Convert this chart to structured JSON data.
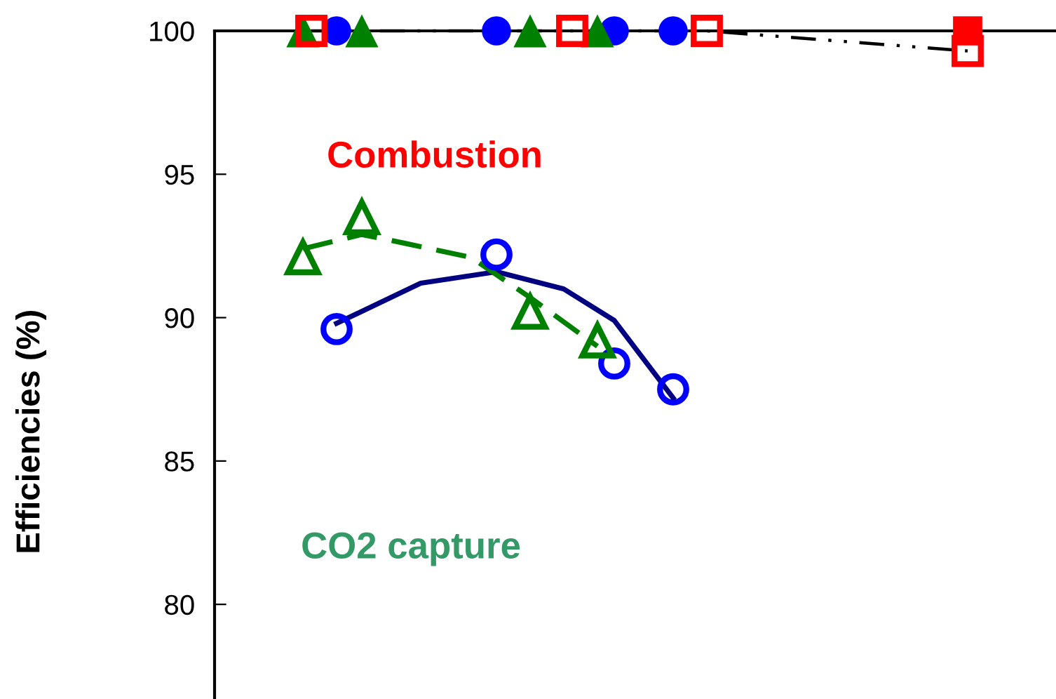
{
  "chart_data": {
    "type": "scatter",
    "ylabel": "Efficiencies (%)",
    "annotations": [
      "Combustion",
      "CO2 capture"
    ],
    "categories": [
      null,
      null,
      null,
      null,
      null,
      null,
      null,
      null,
      null,
      null,
      null,
      null,
      null,
      null,
      null,
      null,
      null,
      null,
      null,
      null,
      null,
      null,
      null,
      null,
      null,
      null,
      null,
      null,
      null,
      null,
      null,
      null,
      null,
      null,
      null,
      null,
      null,
      null,
      null,
      null,
      null,
      null,
      null,
      null,
      null,
      null,
      null,
      null,
      null,
      null,
      null,
      null,
      null,
      null,
      null,
      null,
      null,
      null,
      null,
      null,
      null,
      null,
      null,
      null,
      null,
      null,
      null,
      null,
      null,
      null,
      null,
      null,
      null,
      null,
      null,
      null,
      null,
      null,
      null,
      null,
      null,
      null,
      null,
      null,
      null,
      null,
      null,
      null,
      null,
      null,
      null,
      null,
      null,
      null,
      null,
      null,
      null,
      null,
      null,
      null
    ],
    "ylim": [
      76.7,
      100
    ],
    "yticks": [
      80,
      85,
      90,
      95,
      100
    ],
    "tick_labels": "y",
    "grid": false,
    "legend": false,
    "series": [
      {
        "marker": "circle",
        "color": "#0000ff",
        "values": [
          null,
          null,
          null,
          null,
          null,
          null,
          null,
          null,
          null,
          null,
          null,
          null,
          null,
          null,
          100,
          null,
          null,
          null,
          null,
          null,
          null,
          null,
          null,
          null,
          null,
          null,
          null,
          null,
          null,
          null,
          null,
          null,
          null,
          100,
          null,
          null,
          null,
          null,
          null,
          null,
          null,
          null,
          null,
          null,
          null,
          null,
          null,
          100,
          null,
          null,
          null,
          null,
          null,
          null,
          100,
          null,
          null,
          null,
          null,
          null,
          null,
          null,
          null,
          null,
          null,
          null,
          null,
          null,
          null,
          null,
          null,
          null,
          null,
          null,
          null,
          null,
          null,
          null,
          null,
          null,
          null,
          null,
          null,
          null,
          null,
          null,
          null,
          null,
          null,
          null,
          null,
          null,
          null,
          null,
          null,
          null,
          null,
          null,
          null,
          null
        ]
      },
      {
        "marker": "triangle",
        "color": "#008000",
        "values": [
          null,
          null,
          null,
          null,
          null,
          null,
          null,
          null,
          null,
          null,
          100,
          null,
          null,
          null,
          null,
          null,
          null,
          100,
          null,
          null,
          null,
          null,
          null,
          null,
          null,
          null,
          null,
          null,
          null,
          null,
          null,
          null,
          null,
          null,
          null,
          null,
          null,
          100,
          null,
          null,
          null,
          null,
          null,
          null,
          null,
          100,
          null,
          null,
          null,
          null,
          null,
          null,
          null,
          null,
          null,
          null,
          null,
          null,
          null,
          null,
          null,
          null,
          null,
          null,
          null,
          null,
          null,
          null,
          null,
          null,
          null,
          null,
          null,
          null,
          null,
          null,
          null,
          null,
          null,
          null,
          null,
          null,
          null,
          null,
          null,
          null,
          null,
          null,
          null,
          null,
          null,
          null,
          null,
          null,
          null,
          null,
          null,
          null,
          null,
          null
        ]
      },
      {
        "marker": "square",
        "color": "#ff0000",
        "values": [
          null,
          null,
          null,
          null,
          null,
          null,
          null,
          null,
          null,
          null,
          null,
          null,
          null,
          null,
          null,
          null,
          null,
          null,
          null,
          null,
          null,
          null,
          null,
          null,
          null,
          null,
          null,
          null,
          null,
          null,
          null,
          null,
          null,
          null,
          null,
          null,
          null,
          null,
          null,
          null,
          null,
          null,
          null,
          null,
          null,
          null,
          null,
          null,
          null,
          null,
          null,
          null,
          null,
          null,
          null,
          null,
          null,
          null,
          null,
          null,
          null,
          null,
          null,
          null,
          null,
          null,
          null,
          null,
          null,
          null,
          null,
          null,
          null,
          null,
          null,
          null,
          null,
          null,
          null,
          null,
          null,
          null,
          null,
          null,
          null,
          null,
          null,
          null,
          null,
          100,
          null,
          null,
          null,
          null,
          null,
          null,
          null,
          null,
          null,
          null
        ]
      },
      {
        "type": "line",
        "line_style": "dashed",
        "color": "#000000",
        "values": [
          null,
          null,
          null,
          null,
          null,
          null,
          null,
          null,
          null,
          null,
          null,
          100,
          null,
          null,
          null,
          null,
          null,
          null,
          null,
          null,
          null,
          null,
          null,
          null,
          null,
          null,
          null,
          null,
          null,
          null,
          null,
          null,
          null,
          null,
          null,
          null,
          null,
          null,
          null,
          null,
          null,
          null,
          null,
          null,
          null,
          null,
          null,
          null,
          null,
          null,
          null,
          null,
          null,
          null,
          null,
          null,
          null,
          null,
          100,
          null,
          null,
          null,
          null,
          null,
          null,
          null,
          null,
          null,
          null,
          null,
          null,
          null,
          null,
          null,
          null,
          null,
          null,
          null,
          null,
          null,
          null,
          null,
          null,
          null,
          null,
          null,
          null,
          null,
          null,
          99.3,
          null,
          null,
          null,
          null,
          null,
          null,
          null,
          null,
          null,
          null
        ]
      },
      {
        "marker": "square",
        "color": "#ff0000",
        "values": [
          null,
          null,
          null,
          null,
          null,
          null,
          null,
          null,
          null,
          null,
          null,
          100,
          null,
          null,
          null,
          null,
          null,
          null,
          null,
          null,
          null,
          null,
          null,
          null,
          null,
          null,
          null,
          null,
          null,
          null,
          null,
          null,
          null,
          null,
          null,
          null,
          null,
          null,
          null,
          null,
          null,
          null,
          100,
          null,
          null,
          null,
          null,
          null,
          null,
          null,
          null,
          null,
          null,
          null,
          null,
          null,
          null,
          null,
          100,
          null,
          null,
          null,
          null,
          null,
          null,
          null,
          null,
          null,
          null,
          null,
          null,
          null,
          null,
          null,
          null,
          null,
          null,
          null,
          null,
          null,
          null,
          null,
          null,
          null,
          null,
          null,
          null,
          null,
          null,
          99.3,
          null,
          null,
          null,
          null,
          null,
          null,
          null,
          null,
          null,
          null
        ]
      },
      {
        "type": "line",
        "line_style": "solid",
        "color": "#000080",
        "values": [
          null,
          null,
          null,
          null,
          null,
          null,
          null,
          null,
          null,
          null,
          null,
          null,
          null,
          null,
          89.8,
          null,
          null,
          null,
          null,
          null,
          null,
          null,
          null,
          null,
          91.2,
          null,
          null,
          null,
          null,
          null,
          null,
          null,
          null,
          91.6,
          null,
          null,
          null,
          null,
          null,
          null,
          null,
          91.0,
          null,
          null,
          null,
          null,
          null,
          89.9,
          null,
          null,
          null,
          null,
          null,
          null,
          87.2,
          null,
          null,
          null,
          null,
          null,
          null,
          null,
          null,
          null,
          null,
          null,
          null,
          null,
          null,
          null,
          null,
          null,
          null,
          null,
          null,
          null,
          null,
          null,
          null,
          null,
          null,
          null,
          null,
          null,
          null,
          null,
          null,
          null,
          null,
          null,
          null,
          null,
          null,
          null,
          null,
          null,
          null,
          null,
          null,
          null
        ]
      },
      {
        "type": "line",
        "line_style": "dashed",
        "color": "#008000",
        "values": [
          null,
          null,
          null,
          null,
          null,
          null,
          null,
          null,
          null,
          null,
          92.4,
          null,
          null,
          null,
          null,
          null,
          null,
          92.9,
          null,
          null,
          null,
          null,
          92.6,
          null,
          null,
          null,
          null,
          null,
          null,
          null,
          92.1,
          null,
          null,
          null,
          null,
          null,
          null,
          90.7,
          null,
          null,
          null,
          null,
          null,
          null,
          null,
          89.0,
          null,
          null,
          null,
          null,
          null,
          null,
          null,
          null,
          null,
          null,
          null,
          null,
          null,
          null,
          null,
          null,
          null,
          null,
          null,
          null,
          null,
          null,
          null,
          null,
          null,
          null,
          null,
          null,
          null,
          null,
          null,
          null,
          null,
          null,
          null,
          null,
          null,
          null,
          null,
          null,
          null,
          null,
          null,
          null,
          null,
          null,
          null,
          null,
          null,
          null,
          null,
          null,
          null,
          null
        ]
      },
      {
        "marker": "circle",
        "color": "#0000ff",
        "values": [
          null,
          null,
          null,
          null,
          null,
          null,
          null,
          null,
          null,
          null,
          null,
          null,
          null,
          null,
          89.6,
          null,
          null,
          null,
          null,
          null,
          null,
          null,
          null,
          null,
          null,
          null,
          null,
          null,
          null,
          null,
          null,
          null,
          null,
          92.2,
          null,
          null,
          null,
          null,
          null,
          null,
          null,
          null,
          null,
          null,
          null,
          null,
          null,
          88.4,
          null,
          null,
          null,
          null,
          null,
          null,
          87.5,
          null,
          null,
          null,
          null,
          null,
          null,
          null,
          null,
          null,
          null,
          null,
          null,
          null,
          null,
          null,
          null,
          null,
          null,
          null,
          null,
          null,
          null,
          null,
          null,
          null,
          null,
          null,
          null,
          null,
          null,
          null,
          null,
          null,
          null,
          null,
          null,
          null,
          null,
          null,
          null,
          null,
          null,
          null,
          null,
          null
        ]
      },
      {
        "marker": "triangle",
        "color": "#008000",
        "values": [
          null,
          null,
          null,
          null,
          null,
          null,
          null,
          null,
          null,
          null,
          92.1,
          null,
          null,
          null,
          null,
          null,
          null,
          93.5,
          null,
          null,
          null,
          null,
          null,
          null,
          null,
          null,
          null,
          null,
          null,
          null,
          null,
          null,
          null,
          null,
          null,
          null,
          null,
          90.2,
          null,
          null,
          null,
          null,
          null,
          null,
          null,
          89.2,
          null,
          null,
          null,
          null,
          null,
          null,
          null,
          null,
          null,
          null,
          null,
          null,
          null,
          null,
          null,
          null,
          null,
          null,
          null,
          null,
          null,
          null,
          null,
          null,
          null,
          null,
          null,
          null,
          null,
          null,
          null,
          null,
          null,
          null,
          null,
          null,
          null,
          null,
          null,
          null,
          null,
          null,
          null,
          null,
          null,
          null,
          null,
          null,
          null,
          null,
          null,
          null,
          null,
          null
        ]
      }
    ]
  }
}
